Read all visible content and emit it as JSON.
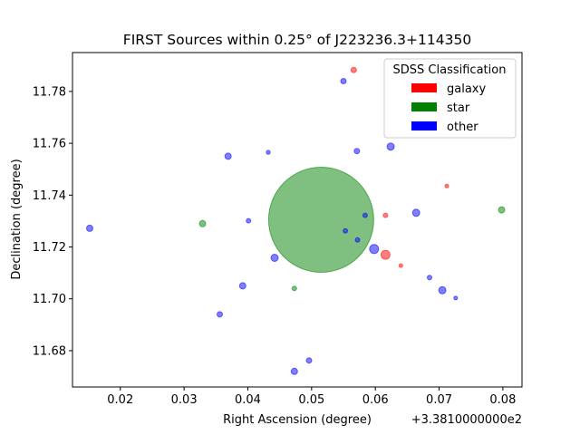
{
  "chart_data": {
    "type": "scatter",
    "title": "FIRST Sources within 0.25° of J223236.3+114350",
    "xlabel": "Right Ascension (degree)",
    "ylabel": "Declination (degree)",
    "x_offset_label": "+3.3810000000e2",
    "xlim": [
      0.0125,
      0.083
    ],
    "ylim": [
      11.666,
      11.795
    ],
    "x_ticks": [
      0.02,
      0.03,
      0.04,
      0.05,
      0.06,
      0.07,
      0.08
    ],
    "x_tick_labels": [
      "0.02",
      "0.03",
      "0.04",
      "0.05",
      "0.06",
      "0.07",
      "0.08"
    ],
    "y_ticks": [
      11.68,
      11.7,
      11.72,
      11.74,
      11.76,
      11.78
    ],
    "y_tick_labels": [
      "11.68",
      "11.70",
      "11.72",
      "11.74",
      "11.76",
      "11.78"
    ],
    "grid": false,
    "legend": {
      "title": "SDSS Classification",
      "placement": "upper right",
      "entries": [
        {
          "label": "galaxy",
          "color": "#ff0000"
        },
        {
          "label": "star",
          "color": "#008000"
        },
        {
          "label": "other",
          "color": "#0000ff"
        }
      ]
    },
    "series": [
      {
        "name": "galaxy",
        "color": "#ff0000",
        "points": [
          {
            "x": 0.0566,
            "y": 11.7883,
            "size": 3
          },
          {
            "x": 0.0712,
            "y": 11.7435,
            "size": 2
          },
          {
            "x": 0.0616,
            "y": 11.7322,
            "size": 2.5
          },
          {
            "x": 0.0616,
            "y": 11.717,
            "size": 5
          },
          {
            "x": 0.064,
            "y": 11.7128,
            "size": 2
          }
        ]
      },
      {
        "name": "star",
        "color": "#008000",
        "points": [
          {
            "x": 0.0515,
            "y": 11.7305,
            "size": 58
          },
          {
            "x": 0.0329,
            "y": 11.729,
            "size": 3.5
          },
          {
            "x": 0.0798,
            "y": 11.7343,
            "size": 3.5
          },
          {
            "x": 0.0473,
            "y": 11.704,
            "size": 2.5
          }
        ]
      },
      {
        "name": "other",
        "color": "#0000ff",
        "points": [
          {
            "x": 0.055,
            "y": 11.784,
            "size": 3
          },
          {
            "x": 0.0624,
            "y": 11.7587,
            "size": 4
          },
          {
            "x": 0.0571,
            "y": 11.757,
            "size": 3
          },
          {
            "x": 0.0432,
            "y": 11.7565,
            "size": 2.2
          },
          {
            "x": 0.0369,
            "y": 11.755,
            "size": 3.5
          },
          {
            "x": 0.0664,
            "y": 11.7332,
            "size": 4
          },
          {
            "x": 0.0584,
            "y": 11.7322,
            "size": 2.5
          },
          {
            "x": 0.0401,
            "y": 11.7301,
            "size": 2.5
          },
          {
            "x": 0.0553,
            "y": 11.7262,
            "size": 2.5
          },
          {
            "x": 0.0572,
            "y": 11.7227,
            "size": 2.5
          },
          {
            "x": 0.0598,
            "y": 11.7192,
            "size": 5
          },
          {
            "x": 0.0152,
            "y": 11.7272,
            "size": 3.5
          },
          {
            "x": 0.0442,
            "y": 11.7158,
            "size": 4
          },
          {
            "x": 0.0392,
            "y": 11.705,
            "size": 3.5
          },
          {
            "x": 0.0685,
            "y": 11.7082,
            "size": 2.5
          },
          {
            "x": 0.0705,
            "y": 11.7033,
            "size": 4
          },
          {
            "x": 0.0726,
            "y": 11.7003,
            "size": 2
          },
          {
            "x": 0.0356,
            "y": 11.694,
            "size": 3
          },
          {
            "x": 0.0496,
            "y": 11.6762,
            "size": 3
          },
          {
            "x": 0.0473,
            "y": 11.672,
            "size": 3.5
          }
        ]
      }
    ]
  }
}
